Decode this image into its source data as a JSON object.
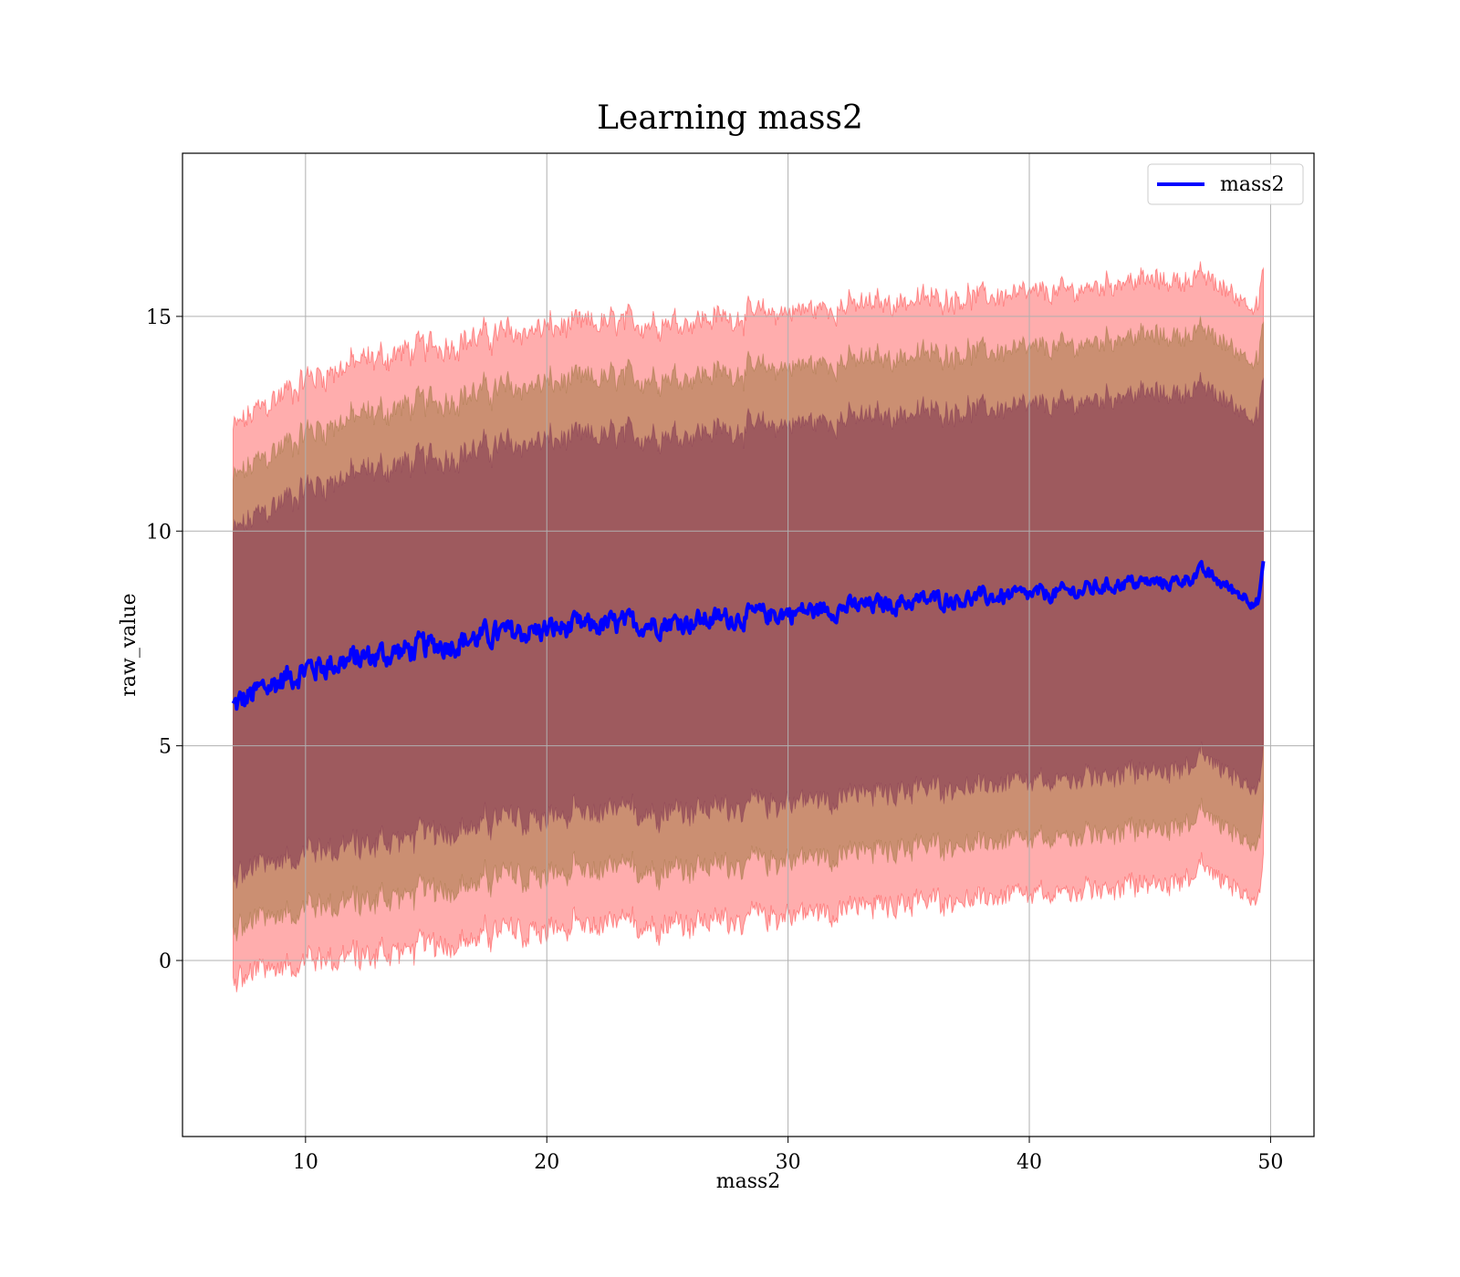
{
  "chart_data": {
    "type": "line",
    "title": "Learning mass2",
    "xlabel": "mass2",
    "ylabel": "raw_value",
    "xlim": [
      4.9,
      51.8
    ],
    "ylim": [
      -4.1,
      18.8
    ],
    "xticks": [
      10,
      20,
      30,
      40,
      50
    ],
    "yticks": [
      0,
      5,
      10,
      15
    ],
    "grid": true,
    "legend": {
      "placement": "top-right",
      "entries": [
        "mass2"
      ]
    },
    "colors": {
      "line": "#0000ff",
      "band_3sigma": "#ff0000",
      "band_2sigma": "#8b6a2a",
      "band_1sigma": "#7a2f4f",
      "grid": "#b0b0b0"
    },
    "x_range": [
      7.0,
      49.7
    ],
    "series": [
      {
        "name": "mass2",
        "x": [
          7.0,
          8.5,
          10.0,
          12.0,
          14.0,
          16.0,
          18.0,
          20.0,
          22.0,
          24.0,
          26.0,
          28.0,
          30.0,
          32.0,
          34.0,
          36.0,
          38.0,
          40.0,
          42.0,
          44.0,
          46.0,
          47.2,
          48.5,
          49.5,
          49.7
        ],
        "mean": [
          5.9,
          6.4,
          6.8,
          7.0,
          7.2,
          7.4,
          7.6,
          7.7,
          7.8,
          7.85,
          7.9,
          8.0,
          8.1,
          8.2,
          8.3,
          8.4,
          8.45,
          8.5,
          8.6,
          8.8,
          8.8,
          9.05,
          8.6,
          8.35,
          9.3
        ],
        "sigma": [
          2.15,
          2.2,
          2.25,
          2.3,
          2.32,
          2.33,
          2.33,
          2.34,
          2.34,
          2.34,
          2.34,
          2.34,
          2.34,
          2.34,
          2.34,
          2.34,
          2.34,
          2.34,
          2.34,
          2.35,
          2.34,
          2.3,
          2.3,
          2.3,
          2.3
        ]
      }
    ]
  }
}
